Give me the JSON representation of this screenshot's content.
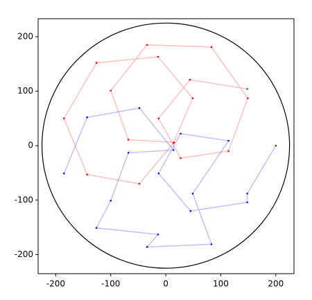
{
  "chart_data": {
    "type": "line",
    "xlim": [
      -232,
      233
    ],
    "ylim": [
      -235,
      233
    ],
    "xticks": [
      -200,
      -100,
      0,
      100,
      200
    ],
    "yticks": [
      -200,
      -100,
      0,
      100,
      200
    ],
    "circle": {
      "radius": 225,
      "color": "#000000"
    },
    "series": [
      {
        "color": "#ff0000",
        "x": [
          148,
          44,
          -13,
          27,
          114,
          149,
          83,
          -34,
          -100,
          -68,
          15,
          -48,
          -143,
          -185,
          -126,
          -14,
          49,
          14
        ],
        "values": [
          104,
          121,
          50,
          -23,
          -10,
          87,
          181,
          185,
          101,
          11,
          6,
          -70,
          -53,
          50,
          152,
          163,
          87,
          5
        ]
      },
      {
        "color": "#0000ff",
        "x": [
          200,
          148,
          148,
          45,
          -13,
          27,
          114,
          49,
          83,
          -34,
          -14,
          -126,
          -100,
          -68,
          14,
          -48,
          -143,
          -185
        ],
        "values": [
          0,
          -88,
          -104,
          -120,
          -51,
          22,
          9,
          -88,
          -181,
          -186,
          -163,
          -151,
          -101,
          -13,
          -8,
          69,
          52,
          -51
        ]
      }
    ]
  }
}
